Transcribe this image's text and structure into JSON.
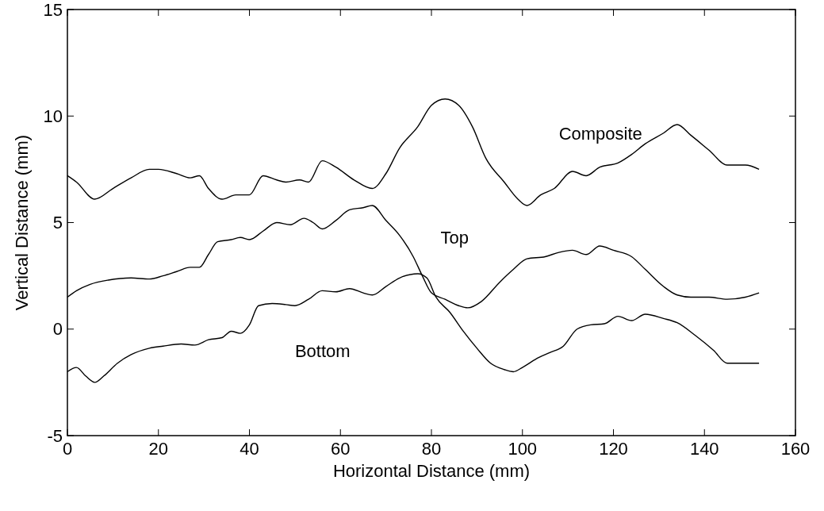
{
  "chart_data": {
    "type": "line",
    "xlabel": "Horizontal Distance (mm)",
    "ylabel": "Vertical Distance (mm)",
    "xlim": [
      0,
      160
    ],
    "xticks": [
      0,
      20,
      40,
      60,
      80,
      100,
      120,
      140,
      160
    ],
    "ylim": [
      -5,
      15
    ],
    "yticks": [
      -5,
      0,
      5,
      10,
      15
    ],
    "grid": false,
    "legend": false,
    "marker": "none",
    "line_style": "solid",
    "series": [
      {
        "name": "Composite",
        "color": "#000000",
        "x": [
          0,
          2,
          6,
          10,
          14,
          18,
          20,
          24,
          27,
          29,
          31,
          34,
          37,
          40,
          43,
          46,
          48,
          51,
          53,
          56,
          59,
          63,
          67,
          70,
          73,
          77,
          80,
          83,
          86,
          89,
          92,
          96,
          99,
          101,
          104,
          107,
          111,
          114,
          117,
          121,
          124,
          127,
          131,
          134,
          137,
          141,
          145,
          149,
          152
        ],
        "values": [
          7.2,
          6.9,
          6.1,
          6.6,
          7.1,
          7.5,
          7.5,
          7.3,
          7.1,
          7.2,
          6.6,
          6.1,
          6.3,
          6.3,
          7.2,
          7.0,
          6.9,
          7.0,
          6.9,
          7.9,
          7.6,
          7.0,
          6.6,
          7.3,
          8.5,
          9.5,
          10.5,
          10.8,
          10.5,
          9.5,
          8.0,
          6.9,
          6.1,
          5.8,
          6.3,
          6.6,
          7.4,
          7.2,
          7.6,
          7.8,
          8.2,
          8.7,
          9.2,
          9.6,
          9.1,
          8.4,
          7.7,
          7.7,
          7.5
        ]
      },
      {
        "name": "Top",
        "color": "#000000",
        "x": [
          0,
          2,
          5,
          9,
          14,
          18,
          21,
          24,
          27,
          29,
          31,
          33,
          36,
          38,
          40,
          43,
          46,
          49,
          52,
          54,
          56,
          59,
          62,
          65,
          67,
          70,
          73,
          76,
          78,
          80,
          83,
          86,
          88,
          91,
          95,
          98,
          101,
          105,
          108,
          111,
          114,
          117,
          120,
          124,
          127,
          131,
          134,
          137,
          141,
          145,
          149,
          152
        ],
        "values": [
          1.5,
          1.8,
          2.1,
          2.3,
          2.4,
          2.35,
          2.5,
          2.7,
          2.9,
          2.9,
          3.5,
          4.1,
          4.2,
          4.3,
          4.2,
          4.6,
          5.0,
          4.9,
          5.2,
          5.0,
          4.7,
          5.1,
          5.6,
          5.7,
          5.8,
          5.1,
          4.4,
          3.4,
          2.5,
          1.7,
          1.4,
          1.1,
          1.0,
          1.3,
          2.2,
          2.8,
          3.3,
          3.4,
          3.6,
          3.7,
          3.5,
          3.9,
          3.7,
          3.4,
          2.8,
          2.0,
          1.6,
          1.5,
          1.5,
          1.4,
          1.5,
          1.7
        ]
      },
      {
        "name": "Bottom",
        "color": "#000000",
        "x": [
          0,
          2,
          4,
          6,
          8,
          11,
          14,
          18,
          21,
          25,
          28,
          31,
          34,
          36,
          38,
          40,
          42,
          45,
          48,
          50,
          53,
          56,
          59,
          62,
          65,
          67,
          70,
          73,
          77,
          79,
          81,
          84,
          87,
          90,
          93,
          96,
          98,
          100,
          103,
          106,
          109,
          112,
          115,
          118,
          121,
          124,
          127,
          131,
          134,
          138,
          142,
          145,
          149,
          152
        ],
        "values": [
          -2.0,
          -1.8,
          -2.2,
          -2.5,
          -2.2,
          -1.6,
          -1.2,
          -0.9,
          -0.8,
          -0.7,
          -0.75,
          -0.5,
          -0.4,
          -0.1,
          -0.2,
          0.2,
          1.1,
          1.2,
          1.15,
          1.1,
          1.4,
          1.8,
          1.75,
          1.9,
          1.7,
          1.6,
          2.0,
          2.4,
          2.6,
          2.4,
          1.5,
          0.8,
          -0.1,
          -0.9,
          -1.6,
          -1.9,
          -2.0,
          -1.8,
          -1.4,
          -1.1,
          -0.8,
          0.0,
          0.2,
          0.25,
          0.6,
          0.4,
          0.7,
          0.5,
          0.3,
          -0.3,
          -1.0,
          -1.6,
          -1.6,
          -1.6
        ]
      }
    ]
  }
}
